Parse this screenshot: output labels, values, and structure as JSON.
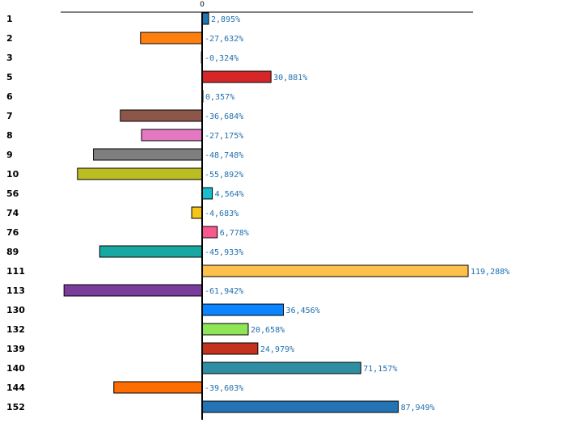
{
  "chart_data": {
    "type": "bar",
    "orientation": "horizontal",
    "title": "",
    "xlabel": "",
    "ylabel": "",
    "zero_tick_label": "0",
    "xlim": [
      -70,
      120
    ],
    "grid": false,
    "categories": [
      "1",
      "2",
      "3",
      "5",
      "6",
      "7",
      "8",
      "9",
      "10",
      "56",
      "74",
      "76",
      "89",
      "111",
      "113",
      "130",
      "132",
      "139",
      "140",
      "144",
      "152"
    ],
    "values": [
      2.895,
      -27.632,
      -0.324,
      30.881,
      0.357,
      -36.684,
      -27.175,
      -48.748,
      -55.892,
      4.564,
      -4.683,
      6.778,
      -45.933,
      119.288,
      -61.942,
      36.456,
      20.658,
      24.979,
      71.157,
      -39.603,
      87.949
    ],
    "value_labels": [
      "2,895%",
      "-27,632%",
      "-0,324%",
      "30,881%",
      "0,357%",
      "-36,684%",
      "-27,175%",
      "-48,748%",
      "-55,892%",
      "4,564%",
      "-4,683%",
      "6,778%",
      "-45,933%",
      "119,288%",
      "-61,942%",
      "36,456%",
      "20,658%",
      "24,979%",
      "71,157%",
      "-39,603%",
      "87,949%"
    ],
    "colors": [
      "#1f77b4",
      "#ff7f0e",
      "#2ca02c",
      "#d62728",
      "#9467bd",
      "#8c564b",
      "#e377c2",
      "#7f7f7f",
      "#bcbd22",
      "#17becf",
      "#f5c518",
      "#f7598f",
      "#17a8a3",
      "#fbc14a",
      "#7b3d9b",
      "#0a84ff",
      "#8ee556",
      "#c3311f",
      "#2e8ea3",
      "#ff6d00",
      "#2474b5"
    ]
  }
}
